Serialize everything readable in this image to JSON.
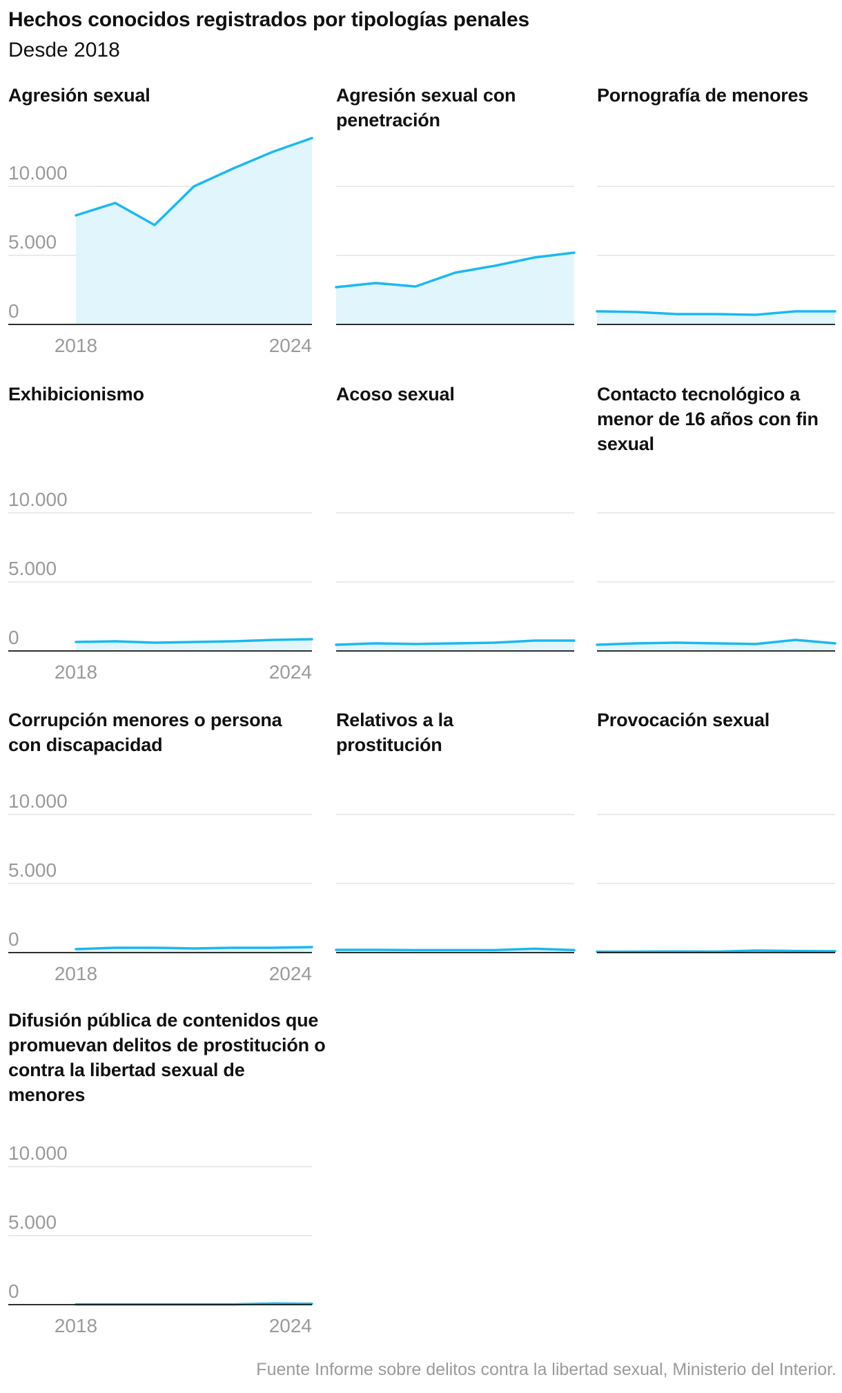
{
  "header": {
    "title": "Hechos conocidos registrados por tipologías penales",
    "subtitle": "Desde 2018"
  },
  "source": "Fuente Informe sobre delitos contra la libertad sexual, Ministerio del Interior.",
  "colors": {
    "line": "#1ab8f0",
    "area": "#e0f5fc",
    "grid": "#dddddd",
    "baseline": "#111111",
    "tick_text": "#9a9a9a"
  },
  "chart_data": [
    {
      "type": "area",
      "title": "Agresión sexual",
      "x": [
        2018,
        2019,
        2020,
        2021,
        2022,
        2023,
        2024
      ],
      "values": [
        7900,
        8800,
        7200,
        10000,
        11300,
        12500,
        13500
      ],
      "yticks": [
        "0",
        "5.000",
        "10.000"
      ],
      "xticks": [
        "2018",
        "2024"
      ],
      "ylim": [
        0,
        14000
      ],
      "show_y_labels": true,
      "show_x_labels": true
    },
    {
      "type": "area",
      "title": "Agresión sexual con penetración",
      "x": [
        2018,
        2019,
        2020,
        2021,
        2022,
        2023,
        2024
      ],
      "values": [
        2700,
        3000,
        2750,
        3750,
        4250,
        4850,
        5200
      ],
      "ylim": [
        0,
        14000
      ],
      "show_y_labels": false,
      "show_x_labels": false
    },
    {
      "type": "area",
      "title": "Pornografía de menores",
      "x": [
        2018,
        2019,
        2020,
        2021,
        2022,
        2023,
        2024
      ],
      "values": [
        950,
        900,
        750,
        750,
        700,
        950,
        950
      ],
      "ylim": [
        0,
        14000
      ],
      "show_y_labels": false,
      "show_x_labels": false
    },
    {
      "type": "area",
      "title": "Exhibicionismo",
      "x": [
        2018,
        2019,
        2020,
        2021,
        2022,
        2023,
        2024
      ],
      "values": [
        650,
        700,
        600,
        650,
        700,
        800,
        850
      ],
      "yticks": [
        "0",
        "5.000",
        "10.000"
      ],
      "xticks": [
        "2018",
        "2024"
      ],
      "ylim": [
        0,
        14000
      ],
      "show_y_labels": true,
      "show_x_labels": true
    },
    {
      "type": "area",
      "title": "Acoso sexual",
      "x": [
        2018,
        2019,
        2020,
        2021,
        2022,
        2023,
        2024
      ],
      "values": [
        450,
        550,
        500,
        550,
        600,
        750,
        750
      ],
      "ylim": [
        0,
        14000
      ],
      "show_y_labels": false,
      "show_x_labels": false
    },
    {
      "type": "area",
      "title": "Contacto tecnológico a menor de 16 años con fin sexual",
      "x": [
        2018,
        2019,
        2020,
        2021,
        2022,
        2023,
        2024
      ],
      "values": [
        450,
        550,
        600,
        550,
        500,
        800,
        550
      ],
      "ylim": [
        0,
        14000
      ],
      "show_y_labels": false,
      "show_x_labels": false
    },
    {
      "type": "area",
      "title": "Corrupción menores o persona con discapacidad",
      "x": [
        2018,
        2019,
        2020,
        2021,
        2022,
        2023,
        2024
      ],
      "values": [
        250,
        350,
        350,
        300,
        350,
        350,
        400
      ],
      "yticks": [
        "0",
        "5.000",
        "10.000"
      ],
      "xticks": [
        "2018",
        "2024"
      ],
      "ylim": [
        0,
        14000
      ],
      "show_y_labels": true,
      "show_x_labels": true
    },
    {
      "type": "area",
      "title": "Relativos a la prostitución",
      "x": [
        2018,
        2019,
        2020,
        2021,
        2022,
        2023,
        2024
      ],
      "values": [
        200,
        200,
        180,
        180,
        180,
        280,
        180
      ],
      "ylim": [
        0,
        14000
      ],
      "show_y_labels": false,
      "show_x_labels": false
    },
    {
      "type": "area",
      "title": "Provocación sexual",
      "x": [
        2018,
        2019,
        2020,
        2021,
        2022,
        2023,
        2024
      ],
      "values": [
        60,
        70,
        80,
        70,
        150,
        120,
        100
      ],
      "ylim": [
        0,
        14000
      ],
      "show_y_labels": false,
      "show_x_labels": false
    },
    {
      "type": "area",
      "title": "Difusión pública de contenidos que promuevan delitos de prostitución o contra la libertad sexual de menores",
      "x": [
        2018,
        2019,
        2020,
        2021,
        2022,
        2023,
        2024
      ],
      "values": [
        20,
        20,
        20,
        20,
        20,
        80,
        60
      ],
      "yticks": [
        "0",
        "5.000",
        "10.000"
      ],
      "xticks": [
        "2018",
        "2024"
      ],
      "ylim": [
        0,
        14000
      ],
      "show_y_labels": true,
      "show_x_labels": true
    }
  ]
}
